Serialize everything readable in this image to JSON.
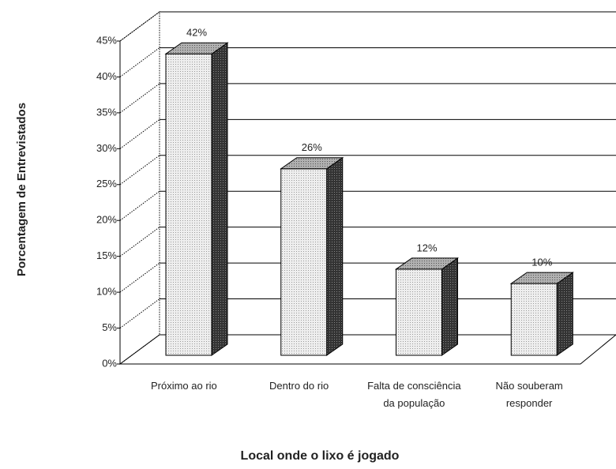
{
  "chart_data": {
    "type": "bar3d",
    "xlabel": "Local onde o lixo é jogado",
    "ylabel": "Porcentagem de Entrevistados",
    "categories": [
      "Próximo ao rio",
      "Dentro do rio",
      "Falta de consciência da população",
      "Não souberam responder"
    ],
    "values": [
      42,
      26,
      12,
      10
    ],
    "value_labels": [
      "42%",
      "26%",
      "12%",
      "10%"
    ],
    "ylim": [
      0,
      45
    ],
    "yticks": [
      {
        "value": 0,
        "label": "0%"
      },
      {
        "value": 5,
        "label": "5%"
      },
      {
        "value": 10,
        "label": "10%"
      },
      {
        "value": 15,
        "label": "15%"
      },
      {
        "value": 20,
        "label": "20%"
      },
      {
        "value": 25,
        "label": "25%"
      },
      {
        "value": 30,
        "label": "30%"
      },
      {
        "value": 35,
        "label": "35%"
      },
      {
        "value": 40,
        "label": "40%"
      },
      {
        "value": 45,
        "label": "45%"
      }
    ],
    "grid": true,
    "color": "#e2e2e2"
  }
}
